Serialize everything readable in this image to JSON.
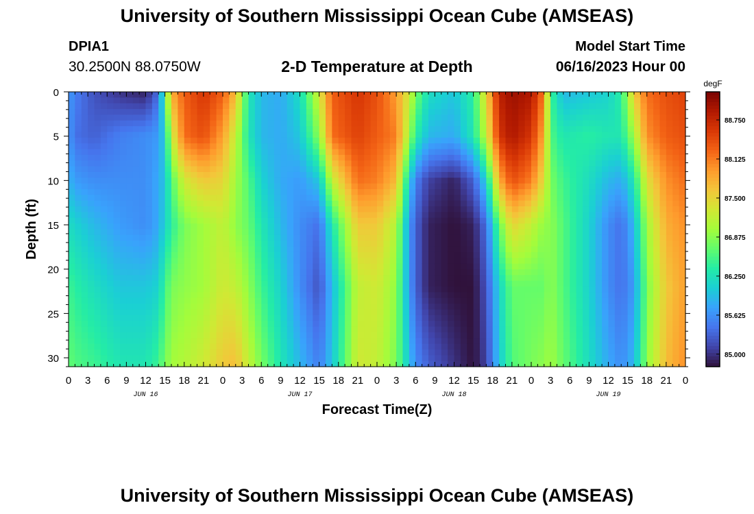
{
  "header": {
    "title": "University of Southern Mississippi Ocean Cube (AMSEAS)",
    "station": "DPIA1",
    "coordinates": "30.2500N  88.0750W",
    "subtitle": "2-D Temperature at Depth",
    "start_label": "Model Start Time",
    "start_value": "06/16/2023 Hour 00"
  },
  "footer": {
    "title": "University of Southern Mississippi Ocean Cube (AMSEAS)"
  },
  "chart_data": {
    "type": "heatmap",
    "title": "2-D Temperature at Depth",
    "xlabel": "Forecast Time(Z)",
    "ylabel": "Depth (ft)",
    "x_range_hours": [
      0,
      96
    ],
    "x_tick_step_hours": 3,
    "x_tick_labels": [
      "0",
      "3",
      "6",
      "9",
      "12",
      "15",
      "18",
      "21",
      "0",
      "3",
      "6",
      "9",
      "12",
      "15",
      "18",
      "21",
      "0",
      "3",
      "6",
      "9",
      "12",
      "15",
      "18",
      "21",
      "0",
      "3",
      "6",
      "9",
      "12",
      "15",
      "18",
      "21",
      "0"
    ],
    "date_labels": [
      {
        "hour": 12,
        "label": "JUN 16"
      },
      {
        "hour": 36,
        "label": "JUN 17"
      },
      {
        "hour": 60,
        "label": "JUN 18"
      },
      {
        "hour": 84,
        "label": "JUN 19"
      }
    ],
    "ylim": [
      0,
      31
    ],
    "y_ticks": [
      0,
      5,
      10,
      15,
      20,
      25,
      30
    ],
    "colorbar": {
      "unit": "degF",
      "min": 84.8,
      "max": 89.2,
      "ticks": [
        "85.000",
        "85.625",
        "86.250",
        "86.875",
        "87.500",
        "88.125",
        "88.750"
      ],
      "colors": [
        "#30123b",
        "#4145ab",
        "#4675ed",
        "#39a2fc",
        "#1bcfd4",
        "#24eca6",
        "#61fc6c",
        "#a4fc3b",
        "#d1e834",
        "#f3c63a",
        "#fe9b2d",
        "#f36315",
        "#d93806",
        "#b11901",
        "#7a0403"
      ]
    },
    "depth_profiles": [
      {
        "hour": 0,
        "temps": [
          85.7,
          85.7,
          85.9,
          86.2,
          86.5,
          86.7
        ]
      },
      {
        "hour": 1,
        "temps": [
          85.5,
          85.4,
          85.7,
          86.1,
          86.4,
          86.6
        ]
      },
      {
        "hour": 4,
        "temps": [
          85.2,
          85.3,
          85.6,
          85.9,
          86.2,
          86.5
        ]
      },
      {
        "hour": 8,
        "temps": [
          85.0,
          85.5,
          85.6,
          85.7,
          86.0,
          86.3
        ]
      },
      {
        "hour": 12,
        "temps": [
          84.9,
          85.6,
          85.6,
          85.6,
          86.0,
          86.3
        ]
      },
      {
        "hour": 14,
        "temps": [
          85.4,
          85.7,
          85.8,
          85.8,
          86.1,
          86.5
        ]
      },
      {
        "hour": 15,
        "temps": [
          86.6,
          86.1,
          86.0,
          86.1,
          86.5,
          86.8
        ]
      },
      {
        "hour": 16,
        "temps": [
          87.8,
          87.2,
          86.6,
          86.4,
          86.8,
          87.0
        ]
      },
      {
        "hour": 18,
        "temps": [
          88.3,
          88.2,
          87.3,
          86.8,
          86.9,
          87.1
        ]
      },
      {
        "hour": 21,
        "temps": [
          88.6,
          88.4,
          87.6,
          87.0,
          87.0,
          87.3
        ]
      },
      {
        "hour": 24,
        "temps": [
          88.3,
          87.9,
          87.5,
          87.2,
          87.3,
          87.6
        ]
      },
      {
        "hour": 26,
        "temps": [
          87.7,
          87.2,
          87.0,
          86.9,
          87.2,
          87.7
        ]
      },
      {
        "hour": 28,
        "temps": [
          86.3,
          86.3,
          86.6,
          86.7,
          86.9,
          87.2
        ]
      },
      {
        "hour": 30,
        "temps": [
          85.9,
          85.9,
          86.1,
          86.3,
          86.5,
          86.8
        ]
      },
      {
        "hour": 33,
        "temps": [
          85.8,
          85.8,
          85.8,
          85.9,
          86.1,
          86.3
        ]
      },
      {
        "hour": 36,
        "temps": [
          86.2,
          86.0,
          85.7,
          85.6,
          85.6,
          85.9
        ]
      },
      {
        "hour": 39,
        "temps": [
          87.3,
          86.9,
          86.0,
          85.4,
          85.2,
          85.5
        ]
      },
      {
        "hour": 41,
        "temps": [
          88.3,
          88.2,
          87.2,
          86.3,
          85.9,
          86.0
        ]
      },
      {
        "hour": 45,
        "temps": [
          88.6,
          88.5,
          88.2,
          87.6,
          87.2,
          87.3
        ]
      },
      {
        "hour": 48,
        "temps": [
          88.4,
          88.3,
          88.1,
          87.6,
          87.3,
          87.2
        ]
      },
      {
        "hour": 51,
        "temps": [
          87.9,
          88.1,
          87.7,
          87.1,
          86.9,
          86.8
        ]
      },
      {
        "hour": 53,
        "temps": [
          87.3,
          87.0,
          86.1,
          85.7,
          85.7,
          86.0
        ]
      },
      {
        "hour": 54,
        "temps": [
          86.8,
          86.4,
          85.5,
          85.3,
          85.3,
          85.6
        ]
      },
      {
        "hour": 56,
        "temps": [
          86.2,
          85.9,
          85.1,
          84.9,
          84.9,
          85.3
        ]
      },
      {
        "hour": 60,
        "temps": [
          86.0,
          85.8,
          84.9,
          84.8,
          84.8,
          85.0
        ]
      },
      {
        "hour": 63,
        "temps": [
          86.4,
          86.3,
          85.3,
          84.9,
          84.8,
          84.8
        ]
      },
      {
        "hour": 65,
        "temps": [
          87.5,
          87.2,
          86.1,
          85.4,
          85.2,
          85.1
        ]
      },
      {
        "hour": 67,
        "temps": [
          88.8,
          88.6,
          87.8,
          86.7,
          86.1,
          86.0
        ]
      },
      {
        "hour": 69,
        "temps": [
          89.0,
          88.9,
          88.4,
          87.5,
          86.7,
          86.6
        ]
      },
      {
        "hour": 72,
        "temps": [
          88.9,
          88.6,
          88.1,
          87.2,
          86.7,
          86.8
        ]
      },
      {
        "hour": 74,
        "temps": [
          88.1,
          87.8,
          87.4,
          86.9,
          86.7,
          86.9
        ]
      },
      {
        "hour": 75,
        "temps": [
          86.5,
          86.6,
          86.8,
          86.9,
          86.9,
          87.0
        ]
      },
      {
        "hour": 77,
        "temps": [
          85.9,
          86.3,
          86.5,
          86.6,
          86.6,
          86.7
        ]
      },
      {
        "hour": 81,
        "temps": [
          86.0,
          86.4,
          86.2,
          86.1,
          86.1,
          86.2
        ]
      },
      {
        "hour": 84,
        "temps": [
          86.1,
          86.3,
          85.9,
          85.6,
          85.6,
          85.8
        ]
      },
      {
        "hour": 86,
        "temps": [
          86.4,
          86.3,
          85.8,
          85.4,
          85.4,
          85.6
        ]
      },
      {
        "hour": 88,
        "temps": [
          87.6,
          87.0,
          86.3,
          85.9,
          85.7,
          85.9
        ]
      },
      {
        "hour": 90,
        "temps": [
          88.2,
          88.0,
          87.4,
          87.0,
          86.8,
          86.9
        ]
      },
      {
        "hour": 93,
        "temps": [
          88.4,
          88.3,
          88.0,
          87.8,
          87.6,
          87.7
        ]
      },
      {
        "hour": 96,
        "temps": [
          88.5,
          88.4,
          88.2,
          88.0,
          87.9,
          88.0
        ]
      }
    ],
    "profile_depths": [
      0,
      5,
      10,
      15,
      22,
      31
    ]
  }
}
